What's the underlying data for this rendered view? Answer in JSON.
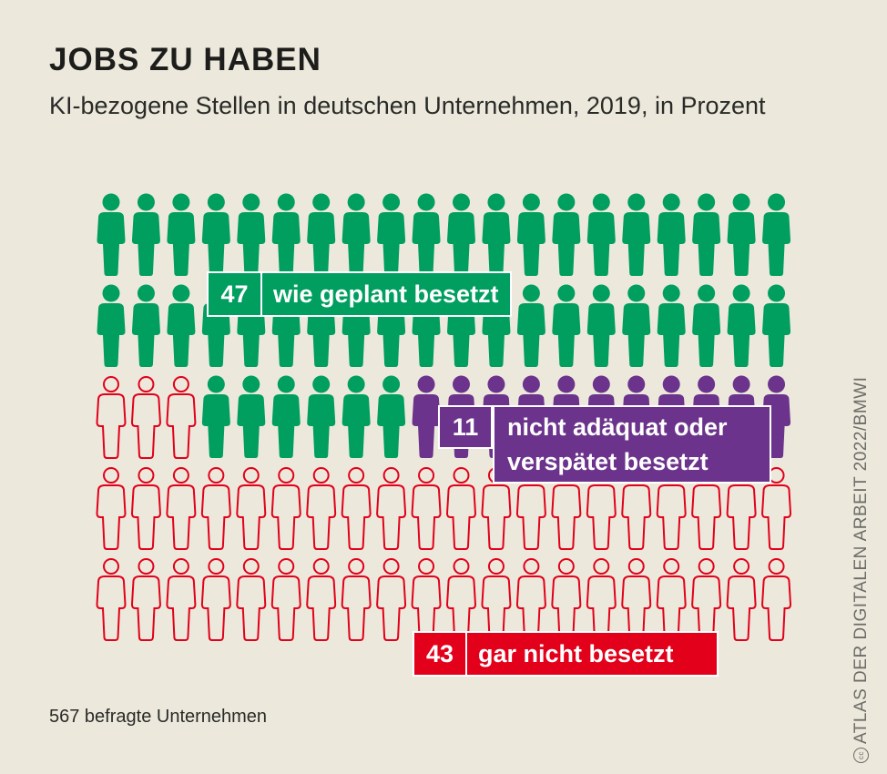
{
  "title": "JOBS ZU HABEN",
  "subtitle": "KI-bezogene Stellen in deutschen Unternehmen, 2019, in Prozent",
  "note": "567 befragte Unternehmen",
  "source": "ATLAS DER DIGITALEN ARBEIT 2022/BMWI",
  "source_icon": "creative-commons-icon",
  "chart_data": {
    "type": "pictogram",
    "title": "JOBS ZU HABEN",
    "categories": [
      "wie geplant besetzt",
      "nicht adäquat oder\nverspätet besetzt",
      "gar nicht besetzt"
    ],
    "values": [
      47,
      11,
      43
    ],
    "unit": "Prozent",
    "colors": {
      "wie geplant besetzt": "#009e5f",
      "nicht adäquat oder\nverspätet besetzt": "#6b338b",
      "gar nicht besetzt": "#e2001a"
    },
    "grid": {
      "columns": 20,
      "rows": 5,
      "icon": "person-icon"
    },
    "pictogram_rows": [
      [
        {
          "category": 0,
          "count": 20
        }
      ],
      [
        {
          "category": 0,
          "count": 20
        }
      ],
      [
        {
          "category": 2,
          "count": 3,
          "style": "outline"
        },
        {
          "category": 0,
          "count": 6
        },
        {
          "category": 1,
          "count": 11
        }
      ],
      [
        {
          "category": 2,
          "count": 20,
          "style": "outline"
        }
      ],
      [
        {
          "category": 2,
          "count": 20,
          "style": "outline"
        }
      ]
    ],
    "labels": [
      {
        "value": "47",
        "text": "wie geplant besetzt"
      },
      {
        "value": "11",
        "text": "nicht adäquat oder\nverspätet besetzt"
      },
      {
        "value": "43",
        "text": "gar nicht besetzt"
      }
    ]
  }
}
